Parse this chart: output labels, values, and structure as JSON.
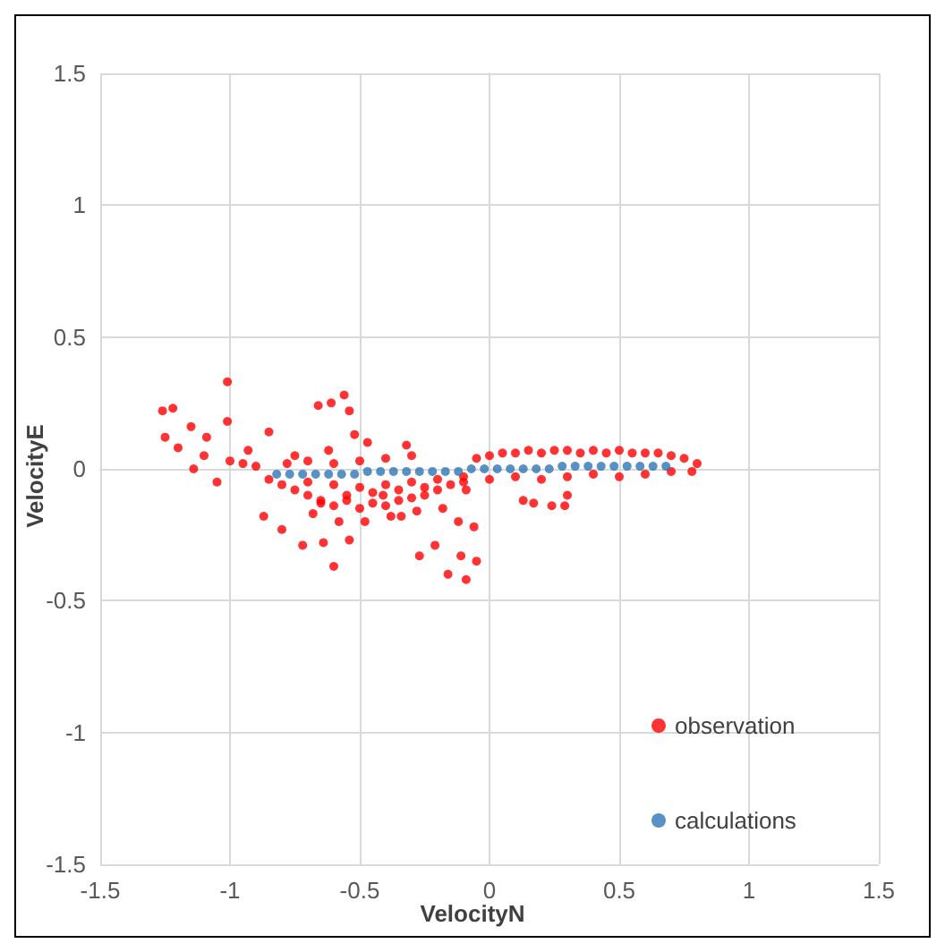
{
  "chart_data": {
    "type": "scatter",
    "xlabel": "VelocityN",
    "ylabel": "VelocityE",
    "xlim": [
      -1.5,
      1.5
    ],
    "ylim": [
      -1.5,
      1.5
    ],
    "xticks": [
      -1.5,
      -1,
      -0.5,
      0,
      0.5,
      1,
      1.5
    ],
    "yticks": [
      -1.5,
      -1,
      -0.5,
      0,
      0.5,
      1,
      1.5
    ],
    "grid": true,
    "legend": "bottom right",
    "marker": "circle",
    "series": [
      {
        "name": "observation",
        "color": "#ff0000",
        "x": [
          -1.01,
          -1.26,
          -1.22,
          -0.56,
          -0.61,
          -0.66,
          -0.54,
          -1.01,
          -0.85,
          -0.52,
          -0.47,
          -1.25,
          -1.15,
          -1.09,
          -1.14,
          -1.05,
          -0.87,
          -0.8,
          -0.72,
          -0.6,
          -0.64,
          -0.54,
          -0.27,
          -0.16,
          -0.09,
          -0.05,
          -0.11,
          -0.21,
          -0.34,
          -0.41,
          -0.62,
          -0.75,
          -0.93,
          -0.09,
          0.13,
          -0.32,
          0.17,
          0.24,
          0.3,
          0.29,
          -1.2,
          -1.1,
          -1.0,
          -0.95,
          -0.9,
          -0.85,
          -0.8,
          -0.78,
          -0.75,
          -0.7,
          -0.7,
          -0.65,
          -0.6,
          -0.6,
          -0.55,
          -0.5,
          -0.5,
          -0.45,
          -0.4,
          -0.4,
          -0.35,
          -0.3,
          -0.3,
          -0.25,
          -0.2,
          -0.15,
          -0.1,
          -0.05,
          0.0,
          0.05,
          0.1,
          0.15,
          0.2,
          0.25,
          0.3,
          0.35,
          0.4,
          0.45,
          0.5,
          0.55,
          0.6,
          0.65,
          0.7,
          0.75,
          0.8,
          -0.7,
          -0.6,
          -0.5,
          -0.4,
          -0.3,
          -0.2,
          -0.1,
          0.0,
          0.1,
          0.2,
          0.3,
          0.4,
          0.5,
          0.6,
          0.7,
          0.78,
          -0.68,
          -0.58,
          -0.48,
          -0.38,
          -0.28,
          -0.65,
          -0.55,
          -0.45,
          -0.35,
          -0.25,
          -0.18,
          -0.12,
          -0.06
        ],
        "values": [
          0.33,
          0.22,
          0.23,
          0.28,
          0.25,
          0.24,
          0.22,
          0.18,
          0.14,
          0.13,
          0.1,
          0.12,
          0.16,
          0.12,
          0.0,
          -0.05,
          -0.18,
          -0.23,
          -0.29,
          -0.37,
          -0.28,
          -0.27,
          -0.33,
          -0.4,
          -0.42,
          -0.35,
          -0.33,
          -0.29,
          -0.18,
          -0.1,
          0.07,
          0.05,
          0.07,
          -0.08,
          -0.12,
          0.09,
          -0.13,
          -0.14,
          -0.1,
          -0.14,
          0.08,
          0.05,
          0.03,
          0.02,
          0.01,
          -0.04,
          -0.06,
          0.02,
          -0.08,
          -0.1,
          0.03,
          -0.12,
          -0.14,
          0.02,
          -0.12,
          -0.15,
          0.03,
          -0.13,
          -0.14,
          0.04,
          -0.12,
          -0.11,
          0.05,
          -0.1,
          -0.08,
          -0.06,
          -0.05,
          0.04,
          0.05,
          0.06,
          0.06,
          0.07,
          0.06,
          0.07,
          0.07,
          0.06,
          0.07,
          0.06,
          0.07,
          0.06,
          0.06,
          0.06,
          0.05,
          0.04,
          0.02,
          -0.05,
          -0.06,
          -0.07,
          -0.06,
          -0.05,
          -0.04,
          -0.03,
          -0.04,
          -0.03,
          -0.04,
          -0.03,
          -0.02,
          -0.03,
          -0.02,
          -0.01,
          -0.01,
          -0.17,
          -0.2,
          -0.2,
          -0.18,
          -0.16,
          -0.13,
          -0.1,
          -0.09,
          -0.08,
          -0.07,
          -0.15,
          -0.2,
          -0.22
        ]
      },
      {
        "name": "calculations",
        "color": "#2e75b6",
        "x": [
          -0.82,
          -0.77,
          -0.72,
          -0.67,
          -0.62,
          -0.57,
          -0.52,
          -0.47,
          -0.42,
          -0.37,
          -0.32,
          -0.27,
          -0.22,
          -0.17,
          -0.12,
          -0.07,
          -0.02,
          0.03,
          0.08,
          0.13,
          0.18,
          0.23,
          0.28,
          0.33,
          0.38,
          0.43,
          0.48,
          0.53,
          0.58,
          0.63,
          0.68
        ],
        "values": [
          -0.02,
          -0.02,
          -0.02,
          -0.02,
          -0.02,
          -0.02,
          -0.02,
          -0.01,
          -0.01,
          -0.01,
          -0.01,
          -0.01,
          -0.01,
          -0.01,
          -0.01,
          0.0,
          0.0,
          0.0,
          0.0,
          0.0,
          0.0,
          0.0,
          0.01,
          0.01,
          0.01,
          0.01,
          0.01,
          0.01,
          0.01,
          0.01,
          0.01
        ]
      }
    ]
  }
}
